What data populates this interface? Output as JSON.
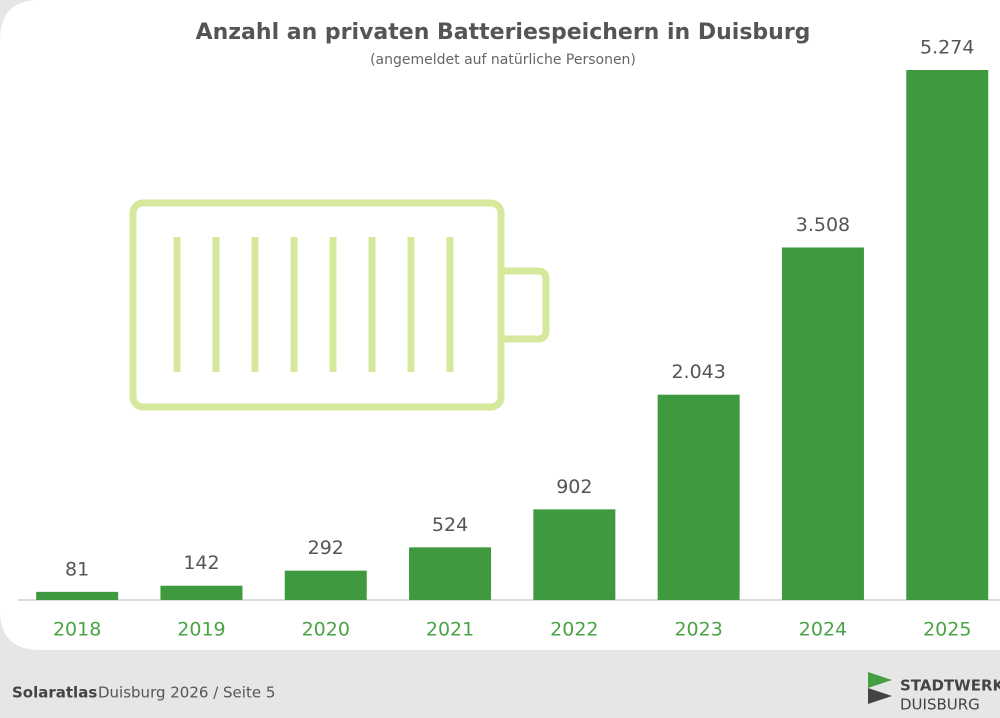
{
  "chart_data": {
    "type": "bar",
    "title": "Anzahl an privaten Batteriespeichern in Duisburg",
    "subtitle": "(angemeldet auf natürliche Personen)",
    "categories": [
      "2018",
      "2019",
      "2020",
      "2021",
      "2022",
      "2023",
      "2024",
      "2025"
    ],
    "values": [
      81,
      142,
      292,
      524,
      902,
      2043,
      3508,
      5274
    ],
    "value_labels": [
      "81",
      "142",
      "292",
      "524",
      "902",
      "2.043",
      "3.508",
      "5.274"
    ],
    "color": "#3f9a3f"
  },
  "footer": {
    "brand": "Solaratlas",
    "text": "Duisburg 2026 / Seite 5",
    "logo": [
      "STADTWERK",
      "DUISBURG"
    ]
  }
}
